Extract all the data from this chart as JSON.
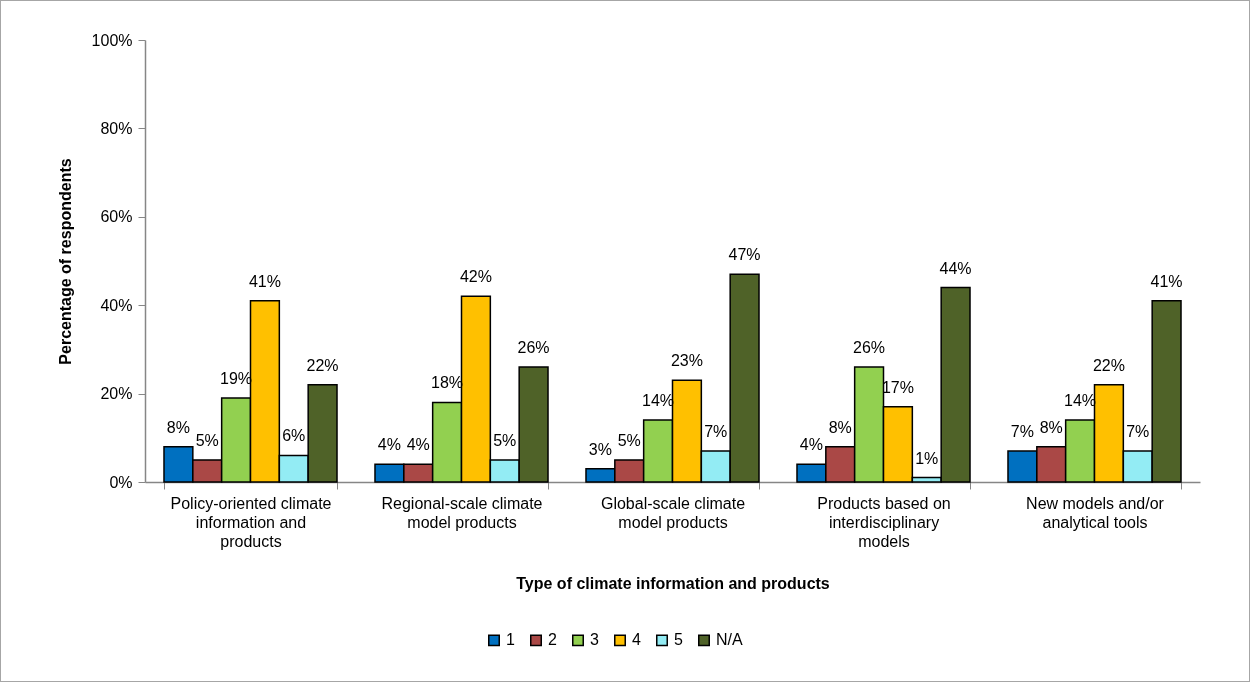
{
  "chart_data": {
    "type": "bar",
    "xlabel": "Type of climate information and products",
    "ylabel": "Percentage of respondents",
    "categories": [
      "Policy-oriented climate information and products",
      "Regional-scale climate model products",
      "Global-scale climate model products",
      "Products based on interdisciplinary models",
      "New models and/or analytical tools"
    ],
    "series": [
      {
        "name": "1",
        "color": "#0070c0",
        "values": [
          8,
          4,
          3,
          4,
          7
        ],
        "value_labels": [
          "8%",
          "4%",
          "3%",
          "4%",
          "7%"
        ]
      },
      {
        "name": "2",
        "color": "#aa4846",
        "values": [
          5,
          4,
          5,
          8,
          8
        ],
        "value_labels": [
          "5%",
          "4%",
          "5%",
          "8%",
          "8%"
        ]
      },
      {
        "name": "3",
        "color": "#92d050",
        "values": [
          19,
          18,
          14,
          26,
          14
        ],
        "value_labels": [
          "19%",
          "18%",
          "14%",
          "26%",
          "14%"
        ]
      },
      {
        "name": "4",
        "color": "#ffc000",
        "values": [
          41,
          42,
          23,
          17,
          22
        ],
        "value_labels": [
          "41%",
          "42%",
          "23%",
          "17%",
          "22%"
        ]
      },
      {
        "name": "5",
        "color": "#93ecf4",
        "values": [
          6,
          5,
          7,
          1,
          7
        ],
        "value_labels": [
          "6%",
          "5%",
          "7%",
          "1%",
          "7%"
        ]
      },
      {
        "name": "N/A",
        "color": "#4f6228",
        "values": [
          22,
          26,
          47,
          44,
          41
        ],
        "value_labels": [
          "22%",
          "26%",
          "47%",
          "44%",
          "41%"
        ]
      }
    ],
    "ylim": [
      0,
      100
    ],
    "yticks": [
      {
        "value": 0,
        "label": "0%"
      },
      {
        "value": 20,
        "label": "20%"
      },
      {
        "value": 40,
        "label": "40%"
      },
      {
        "value": 60,
        "label": "60%"
      },
      {
        "value": 80,
        "label": "80%"
      },
      {
        "value": 100,
        "label": "100%"
      }
    ],
    "grid": false,
    "legend": "bottom"
  }
}
